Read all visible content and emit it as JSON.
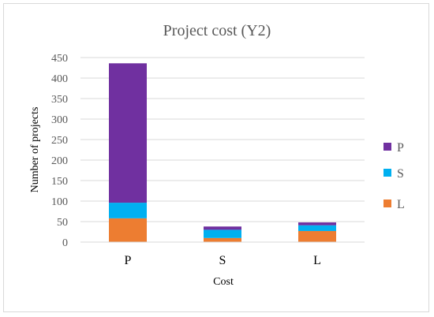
{
  "chart_data": {
    "type": "bar",
    "stacked": true,
    "title": "Project cost (Y2)",
    "xlabel": "Cost",
    "ylabel": "Number of projects",
    "categories": [
      "P",
      "S",
      "L"
    ],
    "ylim": [
      0,
      450
    ],
    "yticks": [
      0,
      50,
      100,
      150,
      200,
      250,
      300,
      350,
      400,
      450
    ],
    "grid": true,
    "legend_position": "right",
    "series": [
      {
        "name": "L",
        "color": "#ED7D31",
        "values": [
          58,
          10,
          27
        ]
      },
      {
        "name": "S",
        "color": "#00B0F0",
        "values": [
          38,
          20,
          14
        ]
      },
      {
        "name": "P",
        "color": "#7030A0",
        "values": [
          340,
          8,
          7
        ]
      }
    ],
    "legend_order": [
      "P",
      "S",
      "L"
    ]
  }
}
